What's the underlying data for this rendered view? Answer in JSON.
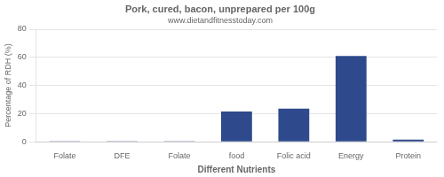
{
  "chart_data": {
    "type": "bar",
    "title": "Pork, cured, bacon, unprepared per 100g",
    "subtitle": "www.dietandfitnesstoday.com",
    "xlabel": "Different Nutrients",
    "ylabel": "Percentage of RDH (%)",
    "categories": [
      "Folate",
      "DFE",
      "Folate",
      "food",
      "Folic acid",
      "Energy",
      "Protein"
    ],
    "values": [
      0.5,
      0.5,
      0.5,
      21.5,
      23.5,
      61,
      1.5
    ],
    "color": "#2E4A8C",
    "ylim": [
      0,
      80
    ],
    "yticks": [
      0,
      20,
      40,
      60,
      80
    ],
    "grid": true
  }
}
